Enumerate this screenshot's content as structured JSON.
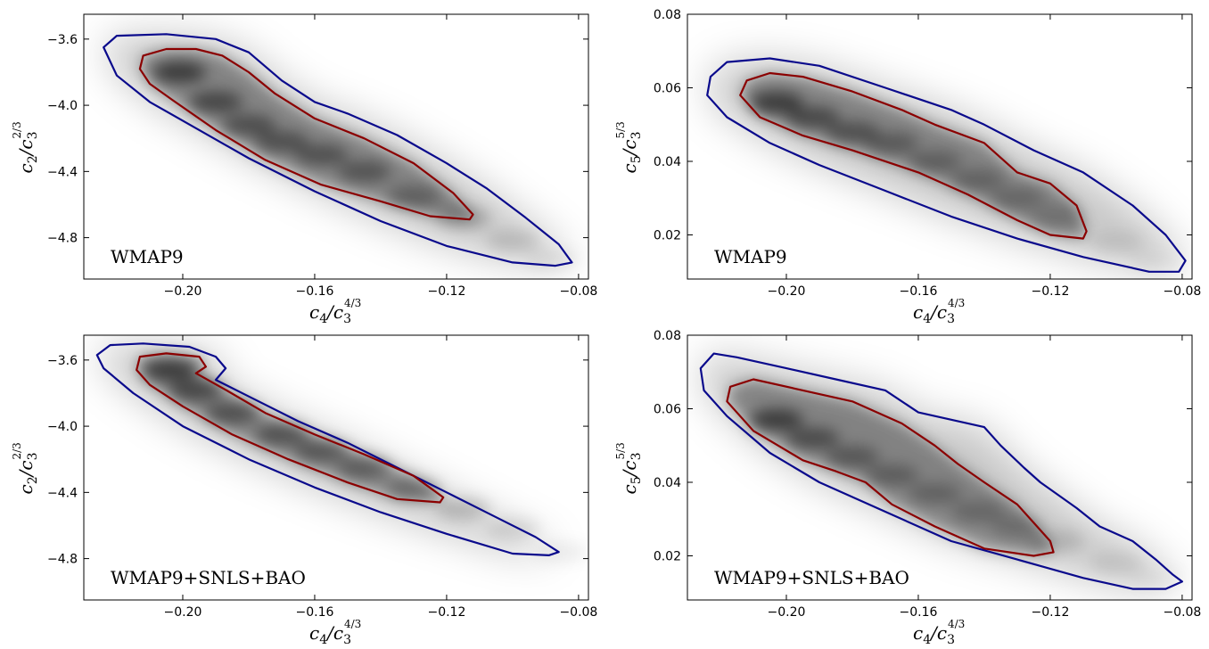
{
  "chart_data": [
    {
      "type": "contour",
      "label": "WMAP9",
      "xlabel": {
        "base": "c",
        "sub": "4",
        "mid": "/c",
        "sub2": "3",
        "sup": "4/3"
      },
      "ylabel": {
        "base": "c",
        "sub": "2",
        "mid": "/c",
        "sub2": "3",
        "sup": "2/3"
      },
      "xlim": [
        -0.23,
        -0.077
      ],
      "ylim": [
        -5.05,
        -3.45
      ],
      "xticks": [
        -0.2,
        -0.16,
        -0.12,
        -0.08
      ],
      "xticklabels": [
        "−0.20",
        "−0.16",
        "−0.12",
        "−0.08"
      ],
      "yticks": [
        -3.6,
        -4.0,
        -4.4,
        -4.8
      ],
      "yticklabels": [
        "−3.6",
        "−4.0",
        "−4.4",
        "−4.8"
      ],
      "contour_outer": [
        [
          -0.224,
          -3.65
        ],
        [
          -0.22,
          -3.58
        ],
        [
          -0.205,
          -3.57
        ],
        [
          -0.19,
          -3.6
        ],
        [
          -0.18,
          -3.68
        ],
        [
          -0.17,
          -3.85
        ],
        [
          -0.16,
          -3.98
        ],
        [
          -0.15,
          -4.05
        ],
        [
          -0.135,
          -4.18
        ],
        [
          -0.12,
          -4.35
        ],
        [
          -0.108,
          -4.5
        ],
        [
          -0.096,
          -4.68
        ],
        [
          -0.086,
          -4.84
        ],
        [
          -0.082,
          -4.95
        ],
        [
          -0.087,
          -4.97
        ],
        [
          -0.1,
          -4.95
        ],
        [
          -0.12,
          -4.85
        ],
        [
          -0.14,
          -4.7
        ],
        [
          -0.16,
          -4.52
        ],
        [
          -0.18,
          -4.32
        ],
        [
          -0.195,
          -4.15
        ],
        [
          -0.21,
          -3.98
        ],
        [
          -0.22,
          -3.82
        ]
      ],
      "contour_inner": [
        [
          -0.213,
          -3.78
        ],
        [
          -0.212,
          -3.7
        ],
        [
          -0.205,
          -3.66
        ],
        [
          -0.196,
          -3.66
        ],
        [
          -0.188,
          -3.7
        ],
        [
          -0.18,
          -3.8
        ],
        [
          -0.172,
          -3.93
        ],
        [
          -0.16,
          -4.08
        ],
        [
          -0.145,
          -4.2
        ],
        [
          -0.13,
          -4.35
        ],
        [
          -0.118,
          -4.53
        ],
        [
          -0.112,
          -4.66
        ],
        [
          -0.113,
          -4.69
        ],
        [
          -0.125,
          -4.67
        ],
        [
          -0.14,
          -4.58
        ],
        [
          -0.158,
          -4.48
        ],
        [
          -0.175,
          -4.33
        ],
        [
          -0.19,
          -4.15
        ],
        [
          -0.203,
          -3.97
        ],
        [
          -0.21,
          -3.87
        ]
      ],
      "density_ridge": [
        [
          -0.201,
          -3.8,
          1.0
        ],
        [
          -0.19,
          -3.98,
          0.85
        ],
        [
          -0.18,
          -4.12,
          0.75
        ],
        [
          -0.17,
          -4.22,
          0.72
        ],
        [
          -0.158,
          -4.3,
          0.7
        ],
        [
          -0.145,
          -4.4,
          0.65
        ],
        [
          -0.13,
          -4.55,
          0.5
        ],
        [
          -0.115,
          -4.68,
          0.38
        ],
        [
          -0.1,
          -4.82,
          0.22
        ],
        [
          -0.088,
          -4.93,
          0.12
        ]
      ]
    },
    {
      "type": "contour",
      "label": "WMAP9",
      "xlabel": {
        "base": "c",
        "sub": "4",
        "mid": "/c",
        "sub2": "3",
        "sup": "4/3"
      },
      "ylabel": {
        "base": "c",
        "sub": "5",
        "mid": "/c",
        "sub2": "3",
        "sup": "5/3"
      },
      "xlim": [
        -0.23,
        -0.077
      ],
      "ylim": [
        0.008,
        0.08
      ],
      "xticks": [
        -0.2,
        -0.16,
        -0.12,
        -0.08
      ],
      "xticklabels": [
        "−0.20",
        "−0.16",
        "−0.12",
        "−0.08"
      ],
      "yticks": [
        0.08,
        0.06,
        0.04,
        0.02
      ],
      "yticklabels": [
        "0.08",
        "0.06",
        "0.04",
        "0.02"
      ],
      "contour_outer": [
        [
          -0.223,
          0.063
        ],
        [
          -0.218,
          0.067
        ],
        [
          -0.205,
          0.068
        ],
        [
          -0.19,
          0.066
        ],
        [
          -0.17,
          0.06
        ],
        [
          -0.15,
          0.054
        ],
        [
          -0.14,
          0.05
        ],
        [
          -0.125,
          0.043
        ],
        [
          -0.11,
          0.037
        ],
        [
          -0.095,
          0.028
        ],
        [
          -0.085,
          0.02
        ],
        [
          -0.079,
          0.013
        ],
        [
          -0.081,
          0.01
        ],
        [
          -0.09,
          0.01
        ],
        [
          -0.11,
          0.014
        ],
        [
          -0.13,
          0.019
        ],
        [
          -0.15,
          0.025
        ],
        [
          -0.17,
          0.032
        ],
        [
          -0.19,
          0.039
        ],
        [
          -0.205,
          0.045
        ],
        [
          -0.218,
          0.052
        ],
        [
          -0.224,
          0.058
        ]
      ],
      "contour_inner": [
        [
          -0.214,
          0.058
        ],
        [
          -0.212,
          0.062
        ],
        [
          -0.205,
          0.064
        ],
        [
          -0.195,
          0.063
        ],
        [
          -0.18,
          0.059
        ],
        [
          -0.165,
          0.054
        ],
        [
          -0.155,
          0.05
        ],
        [
          -0.14,
          0.045
        ],
        [
          -0.13,
          0.037
        ],
        [
          -0.12,
          0.034
        ],
        [
          -0.112,
          0.028
        ],
        [
          -0.109,
          0.021
        ],
        [
          -0.11,
          0.019
        ],
        [
          -0.12,
          0.02
        ],
        [
          -0.13,
          0.024
        ],
        [
          -0.145,
          0.031
        ],
        [
          -0.16,
          0.037
        ],
        [
          -0.18,
          0.043
        ],
        [
          -0.195,
          0.047
        ],
        [
          -0.208,
          0.052
        ]
      ],
      "density_ridge": [
        [
          -0.203,
          0.056,
          1.0
        ],
        [
          -0.192,
          0.052,
          0.82
        ],
        [
          -0.18,
          0.048,
          0.7
        ],
        [
          -0.168,
          0.045,
          0.58
        ],
        [
          -0.155,
          0.04,
          0.5
        ],
        [
          -0.142,
          0.035,
          0.45
        ],
        [
          -0.13,
          0.03,
          0.4
        ],
        [
          -0.118,
          0.025,
          0.28
        ],
        [
          -0.1,
          0.018,
          0.15
        ],
        [
          -0.088,
          0.013,
          0.08
        ]
      ]
    },
    {
      "type": "contour",
      "label": "WMAP9+SNLS+BAO",
      "xlabel": {
        "base": "c",
        "sub": "4",
        "mid": "/c",
        "sub2": "3",
        "sup": "4/3"
      },
      "ylabel": {
        "base": "c",
        "sub": "2",
        "mid": "/c",
        "sub2": "3",
        "sup": "2/3"
      },
      "xlim": [
        -0.23,
        -0.077
      ],
      "ylim": [
        -5.05,
        -3.45
      ],
      "xticks": [
        -0.2,
        -0.16,
        -0.12,
        -0.08
      ],
      "xticklabels": [
        "−0.20",
        "−0.16",
        "−0.12",
        "−0.08"
      ],
      "yticks": [
        -3.6,
        -4.0,
        -4.4,
        -4.8
      ],
      "yticklabels": [
        "−3.6",
        "−4.0",
        "−4.4",
        "−4.8"
      ],
      "contour_outer": [
        [
          -0.226,
          -3.57
        ],
        [
          -0.222,
          -3.51
        ],
        [
          -0.212,
          -3.5
        ],
        [
          -0.198,
          -3.52
        ],
        [
          -0.19,
          -3.58
        ],
        [
          -0.187,
          -3.65
        ],
        [
          -0.19,
          -3.72
        ],
        [
          -0.18,
          -3.82
        ],
        [
          -0.165,
          -3.97
        ],
        [
          -0.15,
          -4.1
        ],
        [
          -0.135,
          -4.25
        ],
        [
          -0.12,
          -4.4
        ],
        [
          -0.105,
          -4.55
        ],
        [
          -0.093,
          -4.67
        ],
        [
          -0.086,
          -4.76
        ],
        [
          -0.089,
          -4.78
        ],
        [
          -0.1,
          -4.77
        ],
        [
          -0.12,
          -4.65
        ],
        [
          -0.14,
          -4.52
        ],
        [
          -0.16,
          -4.37
        ],
        [
          -0.18,
          -4.2
        ],
        [
          -0.2,
          -4.0
        ],
        [
          -0.215,
          -3.8
        ],
        [
          -0.224,
          -3.65
        ]
      ],
      "contour_inner": [
        [
          -0.214,
          -3.66
        ],
        [
          -0.213,
          -3.58
        ],
        [
          -0.205,
          -3.56
        ],
        [
          -0.195,
          -3.58
        ],
        [
          -0.193,
          -3.64
        ],
        [
          -0.196,
          -3.68
        ],
        [
          -0.187,
          -3.78
        ],
        [
          -0.175,
          -3.92
        ],
        [
          -0.16,
          -4.05
        ],
        [
          -0.145,
          -4.17
        ],
        [
          -0.13,
          -4.3
        ],
        [
          -0.121,
          -4.43
        ],
        [
          -0.122,
          -4.46
        ],
        [
          -0.135,
          -4.44
        ],
        [
          -0.15,
          -4.34
        ],
        [
          -0.168,
          -4.2
        ],
        [
          -0.185,
          -4.05
        ],
        [
          -0.2,
          -3.88
        ],
        [
          -0.21,
          -3.75
        ]
      ],
      "density_ridge": [
        [
          -0.204,
          -3.66,
          1.0
        ],
        [
          -0.196,
          -3.78,
          0.85
        ],
        [
          -0.185,
          -3.92,
          0.75
        ],
        [
          -0.17,
          -4.05,
          0.72
        ],
        [
          -0.158,
          -4.15,
          0.68
        ],
        [
          -0.145,
          -4.25,
          0.6
        ],
        [
          -0.13,
          -4.38,
          0.45
        ],
        [
          -0.115,
          -4.5,
          0.32
        ],
        [
          -0.1,
          -4.62,
          0.18
        ],
        [
          -0.085,
          -4.76,
          0.1
        ]
      ]
    },
    {
      "type": "contour",
      "label": "WMAP9+SNLS+BAO",
      "xlabel": {
        "base": "c",
        "sub": "4",
        "mid": "/c",
        "sub2": "3",
        "sup": "4/3"
      },
      "ylabel": {
        "base": "c",
        "sub": "5",
        "mid": "/c",
        "sub2": "3",
        "sup": "5/3"
      },
      "xlim": [
        -0.23,
        -0.077
      ],
      "ylim": [
        0.008,
        0.08
      ],
      "xticks": [
        -0.2,
        -0.16,
        -0.12,
        -0.08
      ],
      "xticklabels": [
        "−0.20",
        "−0.16",
        "−0.12",
        "−0.08"
      ],
      "yticks": [
        0.08,
        0.06,
        0.04,
        0.02
      ],
      "yticklabels": [
        "0.08",
        "0.06",
        "0.04",
        "0.02"
      ],
      "contour_outer": [
        [
          -0.226,
          0.071
        ],
        [
          -0.222,
          0.075
        ],
        [
          -0.215,
          0.074
        ],
        [
          -0.2,
          0.071
        ],
        [
          -0.185,
          0.068
        ],
        [
          -0.17,
          0.065
        ],
        [
          -0.16,
          0.059
        ],
        [
          -0.14,
          0.055
        ],
        [
          -0.135,
          0.05
        ],
        [
          -0.128,
          0.044
        ],
        [
          -0.123,
          0.04
        ],
        [
          -0.112,
          0.033
        ],
        [
          -0.105,
          0.028
        ],
        [
          -0.095,
          0.024
        ],
        [
          -0.088,
          0.019
        ],
        [
          -0.083,
          0.015
        ],
        [
          -0.08,
          0.013
        ],
        [
          -0.085,
          0.011
        ],
        [
          -0.095,
          0.011
        ],
        [
          -0.11,
          0.014
        ],
        [
          -0.13,
          0.019
        ],
        [
          -0.15,
          0.024
        ],
        [
          -0.17,
          0.032
        ],
        [
          -0.19,
          0.04
        ],
        [
          -0.205,
          0.048
        ],
        [
          -0.218,
          0.058
        ],
        [
          -0.225,
          0.065
        ]
      ],
      "contour_inner": [
        [
          -0.218,
          0.062
        ],
        [
          -0.217,
          0.066
        ],
        [
          -0.21,
          0.068
        ],
        [
          -0.195,
          0.065
        ],
        [
          -0.18,
          0.062
        ],
        [
          -0.165,
          0.056
        ],
        [
          -0.155,
          0.05
        ],
        [
          -0.148,
          0.045
        ],
        [
          -0.14,
          0.04
        ],
        [
          -0.13,
          0.034
        ],
        [
          -0.125,
          0.029
        ],
        [
          -0.12,
          0.024
        ],
        [
          -0.119,
          0.021
        ],
        [
          -0.125,
          0.02
        ],
        [
          -0.14,
          0.022
        ],
        [
          -0.155,
          0.028
        ],
        [
          -0.168,
          0.034
        ],
        [
          -0.176,
          0.04
        ],
        [
          -0.185,
          0.043
        ],
        [
          -0.195,
          0.046
        ],
        [
          -0.21,
          0.054
        ]
      ],
      "density_ridge": [
        [
          -0.203,
          0.057,
          1.0
        ],
        [
          -0.192,
          0.052,
          0.78
        ],
        [
          -0.18,
          0.047,
          0.62
        ],
        [
          -0.168,
          0.042,
          0.52
        ],
        [
          -0.155,
          0.037,
          0.45
        ],
        [
          -0.142,
          0.032,
          0.4
        ],
        [
          -0.13,
          0.028,
          0.32
        ],
        [
          -0.118,
          0.024,
          0.24
        ],
        [
          -0.1,
          0.018,
          0.14
        ],
        [
          -0.088,
          0.014,
          0.08
        ]
      ]
    }
  ]
}
